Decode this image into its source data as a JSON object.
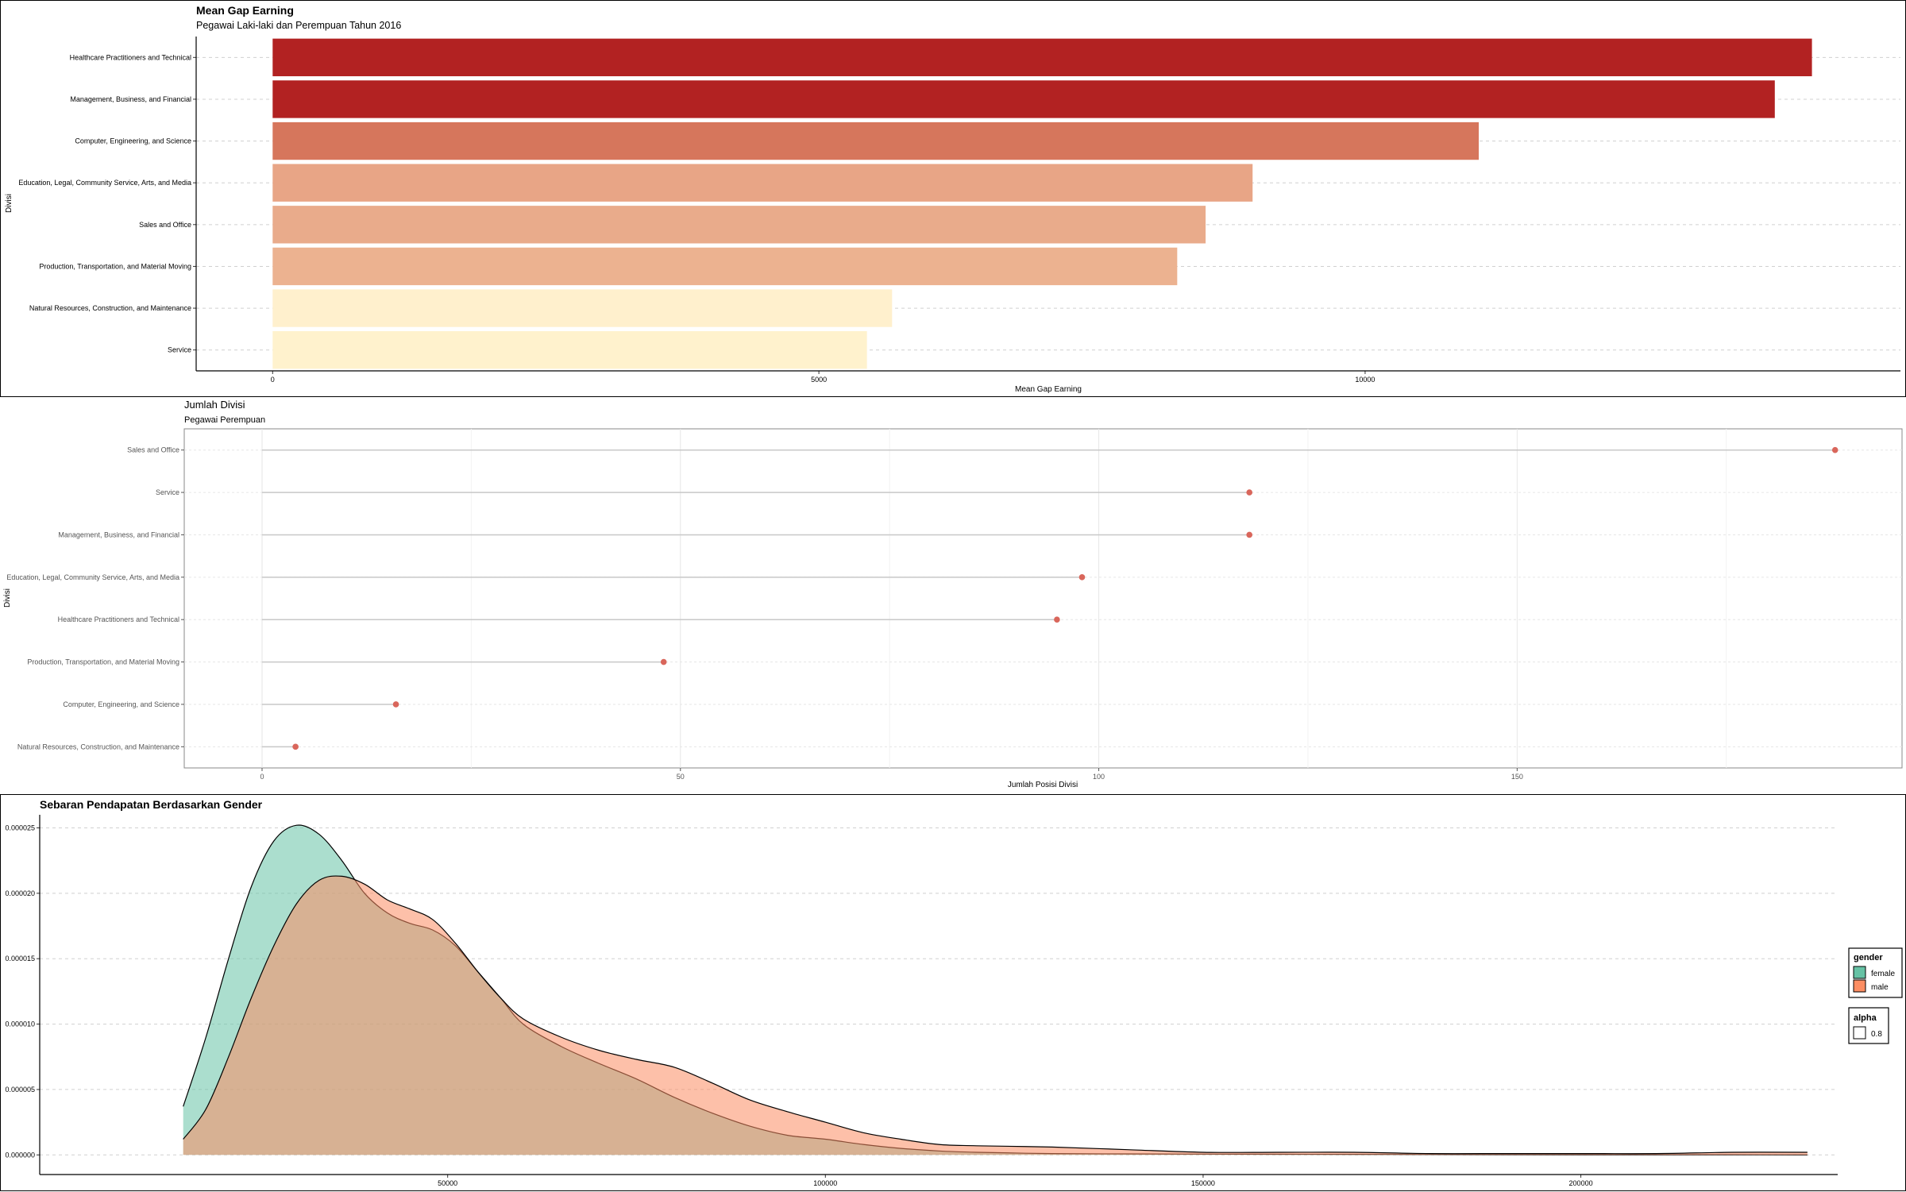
{
  "chart_data": [
    {
      "type": "bar",
      "orientation": "horizontal",
      "title": "Mean Gap Earning",
      "subtitle": "Pegawai Laki-laki dan Perempuan Tahun 2016",
      "xlabel": "Mean Gap Earning",
      "ylabel": "Divisi",
      "xlim": [
        -700,
        14900
      ],
      "xticks": [
        0,
        5000,
        10000
      ],
      "xtick_labels": [
        "0",
        "5000",
        "10000"
      ],
      "grid": "horizontal dashed",
      "categories": [
        "Healthcare Practitioners and Technical",
        "Management, Business, and Financial",
        "Computer, Engineering, and Science",
        "Education, Legal, Community Service, Arts, and Media",
        "Sales and Office",
        "Production, Transportation, and Material Moving",
        "Natural Resources, Construction, and Maintenance",
        "Service"
      ],
      "values": [
        14090,
        13750,
        11040,
        8970,
        8540,
        8280,
        5670,
        5440
      ],
      "colors": [
        "#b22222",
        "#b22222",
        "#d6765c",
        "#e8a586",
        "#e9ab8b",
        "#ecb290",
        "#fff0cd",
        "#fff2cd"
      ]
    },
    {
      "type": "lollipop",
      "orientation": "horizontal",
      "title": "Jumlah Divisi",
      "subtitle": "Pegawai Perempuan",
      "xlabel": "Jumlah Posisi Divisi",
      "ylabel": "Divisi",
      "xlim": [
        -9.3,
        196
      ],
      "xticks": [
        0,
        50,
        100,
        150
      ],
      "xtick_labels": [
        "0",
        "50",
        "100",
        "150"
      ],
      "grid": "on",
      "categories": [
        "Sales and Office",
        "Service",
        "Management, Business, and Financial",
        "Education, Legal, Community Service, Arts, and Media",
        "Healthcare Practitioners and Technical",
        "Production, Transportation, and Material Moving",
        "Computer, Engineering, and Science",
        "Natural Resources, Construction, and Maintenance"
      ],
      "values": [
        188,
        118,
        118,
        98,
        95,
        48,
        16,
        4
      ],
      "point_color": "#d9665b",
      "segment_color": "#c8c8c8"
    },
    {
      "type": "area",
      "subtype": "density",
      "title": "Sebaran Pendapatan Berdasarkan Gender",
      "xlabel": "",
      "ylabel": "",
      "xlim": [
        -4000,
        234000
      ],
      "ylim": [
        -1.5e-06,
        2.6e-05
      ],
      "xticks": [
        50000,
        100000,
        150000,
        200000
      ],
      "xtick_labels": [
        "50000",
        "100000",
        "150000",
        "200000"
      ],
      "yticks": [
        0,
        5e-06,
        1e-05,
        1.5e-05,
        2e-05,
        2.5e-05
      ],
      "ytick_labels": [
        "0.000000",
        "0.000005",
        "0.000010",
        "0.000015",
        "0.000020",
        "0.000025"
      ],
      "grid": "horizontal dashed",
      "legend_position": "right",
      "legend": [
        {
          "title": "gender",
          "items": [
            {
              "label": "female",
              "color": "#66c2a5"
            },
            {
              "label": "male",
              "color": "#fc8d62"
            }
          ]
        },
        {
          "title": "alpha",
          "items": [
            {
              "label": "0.8",
              "color": "#ffffff"
            }
          ]
        }
      ],
      "series": [
        {
          "name": "female",
          "color": "#66c2a5",
          "fill_opacity": 0.55,
          "x": [
            15000,
            18000,
            21000,
            24000,
            27000,
            30000,
            33000,
            36000,
            39000,
            42000,
            45000,
            48000,
            51000,
            54000,
            57000,
            60000,
            65000,
            70000,
            75000,
            80000,
            85000,
            90000,
            95000,
            100000,
            105000,
            110000,
            115000,
            120000,
            130000,
            140000,
            150000,
            160000,
            170000,
            180000,
            190000,
            200000,
            210000,
            220000,
            230000
          ],
          "y": [
            3.7e-06,
            9e-06,
            1.5e-05,
            2.05e-05,
            2.4e-05,
            2.52e-05,
            2.45e-05,
            2.25e-05,
            2e-05,
            1.85e-05,
            1.77e-05,
            1.72e-05,
            1.6e-05,
            1.4e-05,
            1.2e-05,
            1e-05,
            8.3e-06,
            7e-06,
            5.8e-06,
            4.4e-06,
            3.2e-06,
            2.2e-06,
            1.5e-06,
            1.2e-06,
            8e-07,
            5e-07,
            3e-07,
            2e-07,
            1e-07,
            8e-08,
            6e-08,
            5e-08,
            4e-08,
            3e-08,
            2e-08,
            1e-08,
            1e-08,
            1e-08,
            0.0
          ]
        },
        {
          "name": "male",
          "color": "#fc8d62",
          "fill_opacity": 0.55,
          "x": [
            15000,
            18000,
            21000,
            24000,
            27000,
            30000,
            33000,
            36000,
            39000,
            42000,
            45000,
            48000,
            51000,
            54000,
            57000,
            60000,
            65000,
            70000,
            75000,
            80000,
            85000,
            90000,
            95000,
            100000,
            105000,
            110000,
            115000,
            120000,
            130000,
            140000,
            150000,
            160000,
            170000,
            180000,
            190000,
            200000,
            210000,
            220000,
            230000
          ],
          "y": [
            1.2e-06,
            3.5e-06,
            7.5e-06,
            1.2e-05,
            1.6e-05,
            1.92e-05,
            2.1e-05,
            2.13e-05,
            2.07e-05,
            1.95e-05,
            1.88e-05,
            1.8e-05,
            1.62e-05,
            1.4e-05,
            1.2e-05,
            1.04e-05,
            9e-06,
            8e-06,
            7.3e-06,
            6.7e-06,
            5.5e-06,
            4.2e-06,
            3.3e-06,
            2.5e-06,
            1.7e-06,
            1.2e-06,
            8e-07,
            7e-07,
            6e-07,
            4e-07,
            2e-07,
            2e-07,
            2e-07,
            1e-07,
            1e-07,
            1e-07,
            1e-07,
            2e-07,
            2e-07
          ]
        }
      ]
    }
  ]
}
